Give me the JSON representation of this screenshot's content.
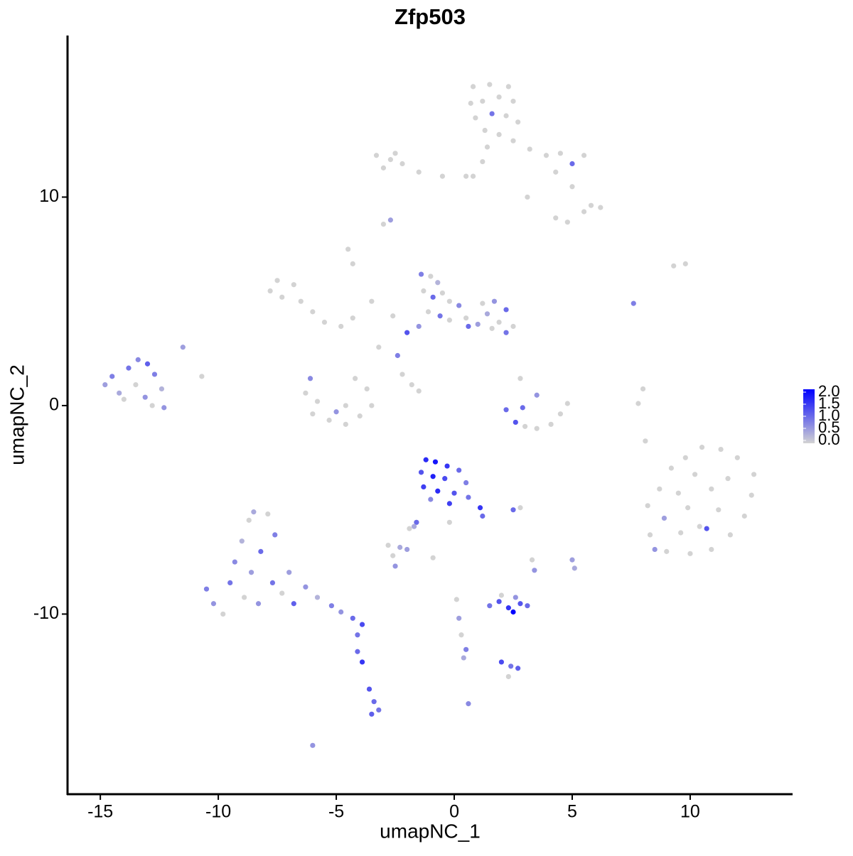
{
  "chart_data": {
    "type": "scatter",
    "title": "Zfp503",
    "x_label": "umapNC_1",
    "y_label": "umapNC_2",
    "xlim": [
      -16.39,
      14.34
    ],
    "ylim": [
      -18.64,
      17.75
    ],
    "xticks": [
      -15,
      -10,
      -5,
      0,
      5,
      10
    ],
    "yticks": [
      -10,
      0,
      10
    ],
    "color_low": "#d3d3d3",
    "color_high": "#0000ff",
    "clim": [
      0,
      2
    ],
    "cticks": [
      {
        "value": 0,
        "label": "0.0"
      },
      {
        "value": 0.5,
        "label": "0.5"
      },
      {
        "value": 1,
        "label": "1.0"
      },
      {
        "value": 1.5,
        "label": "1.5"
      },
      {
        "value": 2,
        "label": "2.0"
      }
    ],
    "points": [
      {
        "x": 0.8,
        "y": 15.3,
        "value": 0
      },
      {
        "x": 1.5,
        "y": 15.4,
        "value": 0
      },
      {
        "x": 2.3,
        "y": 15.3,
        "value": 0
      },
      {
        "x": 0.7,
        "y": 14.5,
        "value": 0
      },
      {
        "x": 1.2,
        "y": 14.6,
        "value": 0
      },
      {
        "x": 1.9,
        "y": 14.8,
        "value": 0
      },
      {
        "x": 2.5,
        "y": 14.6,
        "value": 0
      },
      {
        "x": 0.9,
        "y": 13.8,
        "value": 0
      },
      {
        "x": 1.6,
        "y": 14.0,
        "value": 0.9
      },
      {
        "x": 2.2,
        "y": 13.9,
        "value": 0
      },
      {
        "x": 2.7,
        "y": 13.6,
        "value": 0
      },
      {
        "x": 1.3,
        "y": 13.2,
        "value": 0
      },
      {
        "x": 1.9,
        "y": 13.0,
        "value": 0
      },
      {
        "x": 2.5,
        "y": 12.7,
        "value": 0
      },
      {
        "x": 1.4,
        "y": 12.4,
        "value": 0
      },
      {
        "x": 3.2,
        "y": 12.3,
        "value": 0
      },
      {
        "x": 3.9,
        "y": 12.0,
        "value": 0
      },
      {
        "x": 4.5,
        "y": 12.1,
        "value": 0
      },
      {
        "x": 5.0,
        "y": 11.6,
        "value": 1.0
      },
      {
        "x": 5.5,
        "y": 12.0,
        "value": 0
      },
      {
        "x": 4.3,
        "y": 11.2,
        "value": 0
      },
      {
        "x": 5.0,
        "y": 10.5,
        "value": 0
      },
      {
        "x": 5.8,
        "y": 9.6,
        "value": 0
      },
      {
        "x": 6.2,
        "y": 9.5,
        "value": 0
      },
      {
        "x": 5.5,
        "y": 9.3,
        "value": 0
      },
      {
        "x": 4.8,
        "y": 8.8,
        "value": 0
      },
      {
        "x": 4.3,
        "y": 9.0,
        "value": 0
      },
      {
        "x": 3.1,
        "y": 10.0,
        "value": 0
      },
      {
        "x": 1.2,
        "y": 11.7,
        "value": 0
      },
      {
        "x": 0.8,
        "y": 11.0,
        "value": 0
      },
      {
        "x": -3.3,
        "y": 12.0,
        "value": 0
      },
      {
        "x": -2.7,
        "y": 11.8,
        "value": 0
      },
      {
        "x": -2.2,
        "y": 11.6,
        "value": 0
      },
      {
        "x": -3.0,
        "y": 11.4,
        "value": 0
      },
      {
        "x": -1.5,
        "y": 11.2,
        "value": 0
      },
      {
        "x": -0.5,
        "y": 11.0,
        "value": 0
      },
      {
        "x": 0.5,
        "y": 11.0,
        "value": 0
      },
      {
        "x": -2.5,
        "y": 12.1,
        "value": 0
      },
      {
        "x": -2.7,
        "y": 8.9,
        "value": 0.5
      },
      {
        "x": -3.0,
        "y": 8.7,
        "value": 0
      },
      {
        "x": -7.5,
        "y": 6.0,
        "value": 0
      },
      {
        "x": -7.8,
        "y": 5.5,
        "value": 0
      },
      {
        "x": -7.3,
        "y": 5.2,
        "value": 0
      },
      {
        "x": -6.8,
        "y": 5.8,
        "value": 0
      },
      {
        "x": -6.5,
        "y": 5.0,
        "value": 0
      },
      {
        "x": -6.0,
        "y": 4.5,
        "value": 0
      },
      {
        "x": -5.5,
        "y": 4.0,
        "value": 0
      },
      {
        "x": -4.8,
        "y": 3.8,
        "value": 0
      },
      {
        "x": -4.3,
        "y": 4.2,
        "value": 0
      },
      {
        "x": -4.5,
        "y": 7.5,
        "value": 0
      },
      {
        "x": -4.3,
        "y": 6.8,
        "value": 0
      },
      {
        "x": -3.5,
        "y": 5.0,
        "value": 0
      },
      {
        "x": -2.6,
        "y": 4.3,
        "value": 0
      },
      {
        "x": -3.2,
        "y": 2.8,
        "value": 0
      },
      {
        "x": -2.2,
        "y": 1.5,
        "value": 0
      },
      {
        "x": -1.8,
        "y": 1.0,
        "value": 0
      },
      {
        "x": -1.5,
        "y": 0.7,
        "value": 0
      },
      {
        "x": -1.4,
        "y": 6.3,
        "value": 0.8
      },
      {
        "x": -1.0,
        "y": 6.2,
        "value": 0
      },
      {
        "x": -0.7,
        "y": 5.9,
        "value": 0.3
      },
      {
        "x": -1.3,
        "y": 5.5,
        "value": 0
      },
      {
        "x": -0.9,
        "y": 5.2,
        "value": 1.0
      },
      {
        "x": -0.5,
        "y": 5.4,
        "value": 0
      },
      {
        "x": -0.2,
        "y": 5.0,
        "value": 0
      },
      {
        "x": 0.2,
        "y": 4.8,
        "value": 0.7
      },
      {
        "x": -1.1,
        "y": 4.5,
        "value": 0
      },
      {
        "x": -0.6,
        "y": 4.3,
        "value": 0.9
      },
      {
        "x": -0.2,
        "y": 4.1,
        "value": 0
      },
      {
        "x": 0.5,
        "y": 4.2,
        "value": 0
      },
      {
        "x": -1.5,
        "y": 3.8,
        "value": 0.6
      },
      {
        "x": -2.0,
        "y": 3.5,
        "value": 1.2
      },
      {
        "x": -2.4,
        "y": 2.4,
        "value": 0.8
      },
      {
        "x": 1.2,
        "y": 4.9,
        "value": 0
      },
      {
        "x": 1.7,
        "y": 5.0,
        "value": 0.6
      },
      {
        "x": 2.2,
        "y": 4.6,
        "value": 1.0
      },
      {
        "x": 1.4,
        "y": 4.4,
        "value": 0.4
      },
      {
        "x": 1.9,
        "y": 4.0,
        "value": 0
      },
      {
        "x": 2.5,
        "y": 3.8,
        "value": 0
      },
      {
        "x": 1.0,
        "y": 3.9,
        "value": 0.5
      },
      {
        "x": 2.2,
        "y": 3.5,
        "value": 0.9
      },
      {
        "x": 0.6,
        "y": 3.8,
        "value": 1.0
      },
      {
        "x": 1.6,
        "y": 3.7,
        "value": 0
      },
      {
        "x": -6.3,
        "y": 0.6,
        "value": 0
      },
      {
        "x": -5.8,
        "y": 0.2,
        "value": 0
      },
      {
        "x": -6.0,
        "y": -0.4,
        "value": 0
      },
      {
        "x": -5.3,
        "y": -0.7,
        "value": 0
      },
      {
        "x": -4.6,
        "y": -0.9,
        "value": 0
      },
      {
        "x": -4.0,
        "y": -0.5,
        "value": 0
      },
      {
        "x": -3.5,
        "y": 0.0,
        "value": 0
      },
      {
        "x": -3.7,
        "y": 0.8,
        "value": 0
      },
      {
        "x": -4.2,
        "y": 1.3,
        "value": 0
      },
      {
        "x": -5.0,
        "y": -0.3,
        "value": 0.6
      },
      {
        "x": -6.1,
        "y": 1.3,
        "value": 0.7
      },
      {
        "x": -4.6,
        "y": 0.0,
        "value": 0
      },
      {
        "x": -14.8,
        "y": 1.0,
        "value": 0.5
      },
      {
        "x": -14.5,
        "y": 1.4,
        "value": 0.8
      },
      {
        "x": -14.2,
        "y": 0.6,
        "value": 0.4
      },
      {
        "x": -13.8,
        "y": 1.8,
        "value": 0.9
      },
      {
        "x": -13.4,
        "y": 2.2,
        "value": 0.7
      },
      {
        "x": -13.0,
        "y": 2.0,
        "value": 1.1
      },
      {
        "x": -13.5,
        "y": 1.0,
        "value": 0
      },
      {
        "x": -13.1,
        "y": 0.4,
        "value": 0.6
      },
      {
        "x": -12.7,
        "y": 1.5,
        "value": 0.8
      },
      {
        "x": -12.4,
        "y": 0.8,
        "value": 0.3
      },
      {
        "x": -12.3,
        "y": -0.1,
        "value": 0.6
      },
      {
        "x": -12.8,
        "y": 0.0,
        "value": 0
      },
      {
        "x": -14.0,
        "y": 0.3,
        "value": 0
      },
      {
        "x": -11.5,
        "y": 2.8,
        "value": 0.5
      },
      {
        "x": -10.7,
        "y": 1.4,
        "value": 0
      },
      {
        "x": -1.2,
        "y": -2.6,
        "value": 1.6
      },
      {
        "x": -0.8,
        "y": -2.7,
        "value": 1.8
      },
      {
        "x": -0.3,
        "y": -2.9,
        "value": 1.5
      },
      {
        "x": -1.4,
        "y": -3.2,
        "value": 1.2
      },
      {
        "x": -0.9,
        "y": -3.4,
        "value": 1.7
      },
      {
        "x": -0.4,
        "y": -3.5,
        "value": 1.3
      },
      {
        "x": 0.2,
        "y": -3.1,
        "value": 1.0
      },
      {
        "x": 0.5,
        "y": -3.7,
        "value": 0.8
      },
      {
        "x": -1.3,
        "y": -3.9,
        "value": 1.4
      },
      {
        "x": -0.7,
        "y": -4.1,
        "value": 1.6
      },
      {
        "x": 0.0,
        "y": -4.2,
        "value": 1.2
      },
      {
        "x": 0.6,
        "y": -4.4,
        "value": 0.9
      },
      {
        "x": 1.1,
        "y": -4.9,
        "value": 1.5
      },
      {
        "x": 1.2,
        "y": -5.3,
        "value": 1.0
      },
      {
        "x": -0.2,
        "y": -4.7,
        "value": 1.4
      },
      {
        "x": -1.0,
        "y": -4.5,
        "value": 0.7
      },
      {
        "x": -1.6,
        "y": -5.6,
        "value": 1.0
      },
      {
        "x": -1.9,
        "y": -5.9,
        "value": 0
      },
      {
        "x": 8.2,
        "y": -4.8,
        "value": 0
      },
      {
        "x": 8.7,
        "y": -4.0,
        "value": 0
      },
      {
        "x": 9.2,
        "y": -3.0,
        "value": 0
      },
      {
        "x": 9.8,
        "y": -2.5,
        "value": 0
      },
      {
        "x": 10.5,
        "y": -2.0,
        "value": 0
      },
      {
        "x": 11.3,
        "y": -2.1,
        "value": 0
      },
      {
        "x": 12.0,
        "y": -2.5,
        "value": 0
      },
      {
        "x": 12.7,
        "y": -3.3,
        "value": 0
      },
      {
        "x": 12.6,
        "y": -4.3,
        "value": 0
      },
      {
        "x": 12.3,
        "y": -5.3,
        "value": 0
      },
      {
        "x": 11.7,
        "y": -6.2,
        "value": 0
      },
      {
        "x": 10.9,
        "y": -6.9,
        "value": 0
      },
      {
        "x": 10.0,
        "y": -7.1,
        "value": 0
      },
      {
        "x": 9.0,
        "y": -7.0,
        "value": 0
      },
      {
        "x": 8.3,
        "y": -6.2,
        "value": 0
      },
      {
        "x": 8.9,
        "y": -5.4,
        "value": 0.5
      },
      {
        "x": 9.5,
        "y": -4.2,
        "value": 0
      },
      {
        "x": 10.2,
        "y": -3.3,
        "value": 0
      },
      {
        "x": 10.9,
        "y": -4.0,
        "value": 0
      },
      {
        "x": 11.6,
        "y": -3.5,
        "value": 0
      },
      {
        "x": 11.2,
        "y": -5.0,
        "value": 0
      },
      {
        "x": 10.4,
        "y": -5.8,
        "value": 0
      },
      {
        "x": 9.6,
        "y": -6.1,
        "value": 0
      },
      {
        "x": 9.9,
        "y": -4.9,
        "value": 0
      },
      {
        "x": 10.7,
        "y": -5.9,
        "value": 1.2
      },
      {
        "x": 8.5,
        "y": -6.9,
        "value": 0.6
      },
      {
        "x": 7.6,
        "y": 4.9,
        "value": 0.8
      },
      {
        "x": 8.0,
        "y": 0.8,
        "value": 0
      },
      {
        "x": 7.8,
        "y": 0.1,
        "value": 0
      },
      {
        "x": 8.1,
        "y": -1.7,
        "value": 0
      },
      {
        "x": 9.3,
        "y": 6.7,
        "value": 0
      },
      {
        "x": 9.8,
        "y": 6.8,
        "value": 0
      },
      {
        "x": 2.8,
        "y": 1.3,
        "value": 0
      },
      {
        "x": 3.5,
        "y": 0.5,
        "value": 0.6
      },
      {
        "x": 2.9,
        "y": -0.1,
        "value": 1.0
      },
      {
        "x": 2.2,
        "y": -0.2,
        "value": 1.0
      },
      {
        "x": 2.6,
        "y": -0.8,
        "value": 1.2
      },
      {
        "x": 3.0,
        "y": -1.0,
        "value": 0
      },
      {
        "x": 3.5,
        "y": -1.1,
        "value": 0
      },
      {
        "x": 4.1,
        "y": -0.9,
        "value": 0
      },
      {
        "x": 4.5,
        "y": -0.4,
        "value": 0
      },
      {
        "x": 4.8,
        "y": 0.1,
        "value": 0
      },
      {
        "x": 2.8,
        "y": -4.9,
        "value": 0
      },
      {
        "x": 2.5,
        "y": -5.0,
        "value": 1.0
      },
      {
        "x": -10.5,
        "y": -8.8,
        "value": 0.8
      },
      {
        "x": -10.2,
        "y": -9.5,
        "value": 0.6
      },
      {
        "x": -9.8,
        "y": -10.0,
        "value": 0
      },
      {
        "x": -9.5,
        "y": -8.5,
        "value": 0.9
      },
      {
        "x": -9.3,
        "y": -7.5,
        "value": 0.7
      },
      {
        "x": -9.0,
        "y": -6.5,
        "value": 0.3
      },
      {
        "x": -8.7,
        "y": -5.5,
        "value": 0
      },
      {
        "x": -8.5,
        "y": -5.1,
        "value": 0.4
      },
      {
        "x": -7.9,
        "y": -5.2,
        "value": 0
      },
      {
        "x": -7.6,
        "y": -6.2,
        "value": 0.8
      },
      {
        "x": -8.2,
        "y": -7.0,
        "value": 1.0
      },
      {
        "x": -8.6,
        "y": -8.0,
        "value": 0.5
      },
      {
        "x": -8.9,
        "y": -9.2,
        "value": 0
      },
      {
        "x": -8.3,
        "y": -9.5,
        "value": 0.6
      },
      {
        "x": -7.7,
        "y": -8.5,
        "value": 0.9
      },
      {
        "x": -7.3,
        "y": -9.0,
        "value": 0
      },
      {
        "x": -7.0,
        "y": -8.0,
        "value": 0.5
      },
      {
        "x": -6.8,
        "y": -9.5,
        "value": 1.1
      },
      {
        "x": -6.3,
        "y": -8.7,
        "value": 0.6
      },
      {
        "x": -5.8,
        "y": -9.2,
        "value": 0.3
      },
      {
        "x": -5.2,
        "y": -9.6,
        "value": 0.8
      },
      {
        "x": -4.8,
        "y": -9.9,
        "value": 0.6
      },
      {
        "x": -4.3,
        "y": -10.2,
        "value": 1.0
      },
      {
        "x": -3.9,
        "y": -10.5,
        "value": 1.3
      },
      {
        "x": -4.1,
        "y": -11.0,
        "value": 0.9
      },
      {
        "x": -4.1,
        "y": -11.8,
        "value": 1.0
      },
      {
        "x": -3.9,
        "y": -12.3,
        "value": 1.5
      },
      {
        "x": -3.6,
        "y": -13.6,
        "value": 1.2
      },
      {
        "x": -3.4,
        "y": -14.2,
        "value": 1.0
      },
      {
        "x": -3.5,
        "y": -14.8,
        "value": 1.1
      },
      {
        "x": -3.2,
        "y": -14.6,
        "value": 0.9
      },
      {
        "x": -6.0,
        "y": -16.3,
        "value": 0.6
      },
      {
        "x": 1.5,
        "y": -9.6,
        "value": 0.9
      },
      {
        "x": 1.9,
        "y": -9.4,
        "value": 1.2
      },
      {
        "x": 2.3,
        "y": -9.7,
        "value": 1.5
      },
      {
        "x": 2.5,
        "y": -9.9,
        "value": 2.0
      },
      {
        "x": 2.8,
        "y": -9.5,
        "value": 1.2
      },
      {
        "x": 3.1,
        "y": -9.6,
        "value": 1.0
      },
      {
        "x": 2.0,
        "y": -9.1,
        "value": 0
      },
      {
        "x": 2.6,
        "y": -9.2,
        "value": 0.6
      },
      {
        "x": 2.0,
        "y": -12.3,
        "value": 1.3
      },
      {
        "x": 2.4,
        "y": -12.5,
        "value": 0.9
      },
      {
        "x": 2.7,
        "y": -12.6,
        "value": 1.1
      },
      {
        "x": 2.3,
        "y": -13.0,
        "value": 0
      },
      {
        "x": 0.1,
        "y": -9.3,
        "value": 0
      },
      {
        "x": 0.2,
        "y": -10.2,
        "value": 0.5
      },
      {
        "x": 0.3,
        "y": -11.0,
        "value": 0
      },
      {
        "x": 0.5,
        "y": -11.7,
        "value": 0.8
      },
      {
        "x": 0.4,
        "y": -12.1,
        "value": 0.4
      },
      {
        "x": -0.9,
        "y": -7.3,
        "value": 0
      },
      {
        "x": 0.6,
        "y": -14.3,
        "value": 0.7
      },
      {
        "x": -2.8,
        "y": -6.7,
        "value": 0
      },
      {
        "x": -2.3,
        "y": -6.8,
        "value": 0.4
      },
      {
        "x": -2.6,
        "y": -7.2,
        "value": 0
      },
      {
        "x": -2.5,
        "y": -7.7,
        "value": 0.6
      },
      {
        "x": -2.0,
        "y": -6.9,
        "value": 0.5
      },
      {
        "x": 3.3,
        "y": -7.4,
        "value": 0
      },
      {
        "x": 3.4,
        "y": -7.9,
        "value": 0.6
      },
      {
        "x": 5.0,
        "y": -7.4,
        "value": 0.5
      },
      {
        "x": 5.1,
        "y": -7.8,
        "value": 0.4
      },
      {
        "x": -1.7,
        "y": -5.8,
        "value": 0.4
      },
      {
        "x": -1.6,
        "y": -5.6,
        "value": 0
      },
      {
        "x": -0.2,
        "y": -5.6,
        "value": 0
      }
    ]
  }
}
